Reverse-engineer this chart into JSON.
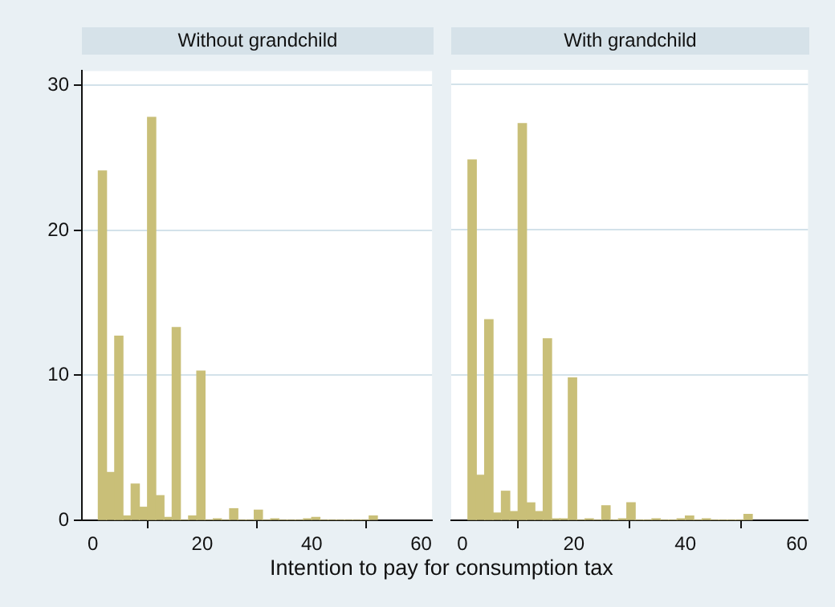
{
  "chart_data": [
    {
      "type": "histogram",
      "title": "Without grandchild",
      "xlabel": "Intention to pay for consumption tax",
      "color": "#c9bf78",
      "bins": [
        1,
        2.5,
        4,
        5.5,
        7,
        8.5,
        10,
        11.5,
        13,
        14.5,
        16,
        17.5,
        19,
        20.5,
        22,
        23.5,
        25,
        26.5,
        28,
        29.5,
        31,
        32.5,
        34,
        35.5,
        37,
        38.5,
        40,
        41.5,
        43,
        44.5,
        46,
        47.5,
        49,
        50.5,
        52
      ],
      "values": [
        24.1,
        3.3,
        12.7,
        0.3,
        2.5,
        0.9,
        27.8,
        1.7,
        0.2,
        13.3,
        0,
        0.3,
        10.3,
        0,
        0.1,
        0,
        0.8,
        0,
        0,
        0.7,
        0,
        0.1,
        0,
        0,
        0,
        0.1,
        0.2,
        0,
        0,
        0,
        0,
        0,
        0,
        0.3
      ],
      "xlim": [
        -2,
        62
      ],
      "xticks": [
        0,
        20,
        40,
        60
      ],
      "ylim": [
        0,
        31
      ],
      "yticks": [
        0,
        10,
        20,
        30
      ],
      "grid": "y"
    },
    {
      "type": "histogram",
      "title": "With grandchild",
      "color": "#c9bf78",
      "bins": [
        1,
        2.5,
        4,
        5.5,
        7,
        8.5,
        10,
        11.5,
        13,
        14.5,
        16,
        17.5,
        19,
        20.5,
        22,
        23.5,
        25,
        26.5,
        28,
        29.5,
        31,
        32.5,
        34,
        35.5,
        37,
        38.5,
        40,
        41.5,
        43,
        44.5,
        46,
        47.5,
        49,
        50.5,
        52
      ],
      "values": [
        24.8,
        3.1,
        13.8,
        0.5,
        2.0,
        0.6,
        27.3,
        1.2,
        0.6,
        12.5,
        0.1,
        0.1,
        9.8,
        0,
        0.1,
        0,
        1.0,
        0,
        0.1,
        1.2,
        0,
        0,
        0.1,
        0,
        0,
        0.1,
        0.3,
        0,
        0.1,
        0,
        0,
        0,
        0,
        0.4
      ],
      "xlim": [
        -2,
        62
      ],
      "xticks": [
        0,
        20,
        40,
        60
      ],
      "ylim": [
        0,
        31
      ],
      "yticks": [
        0,
        10,
        20,
        30
      ],
      "grid": "y",
      "tick_labels": "x"
    }
  ]
}
